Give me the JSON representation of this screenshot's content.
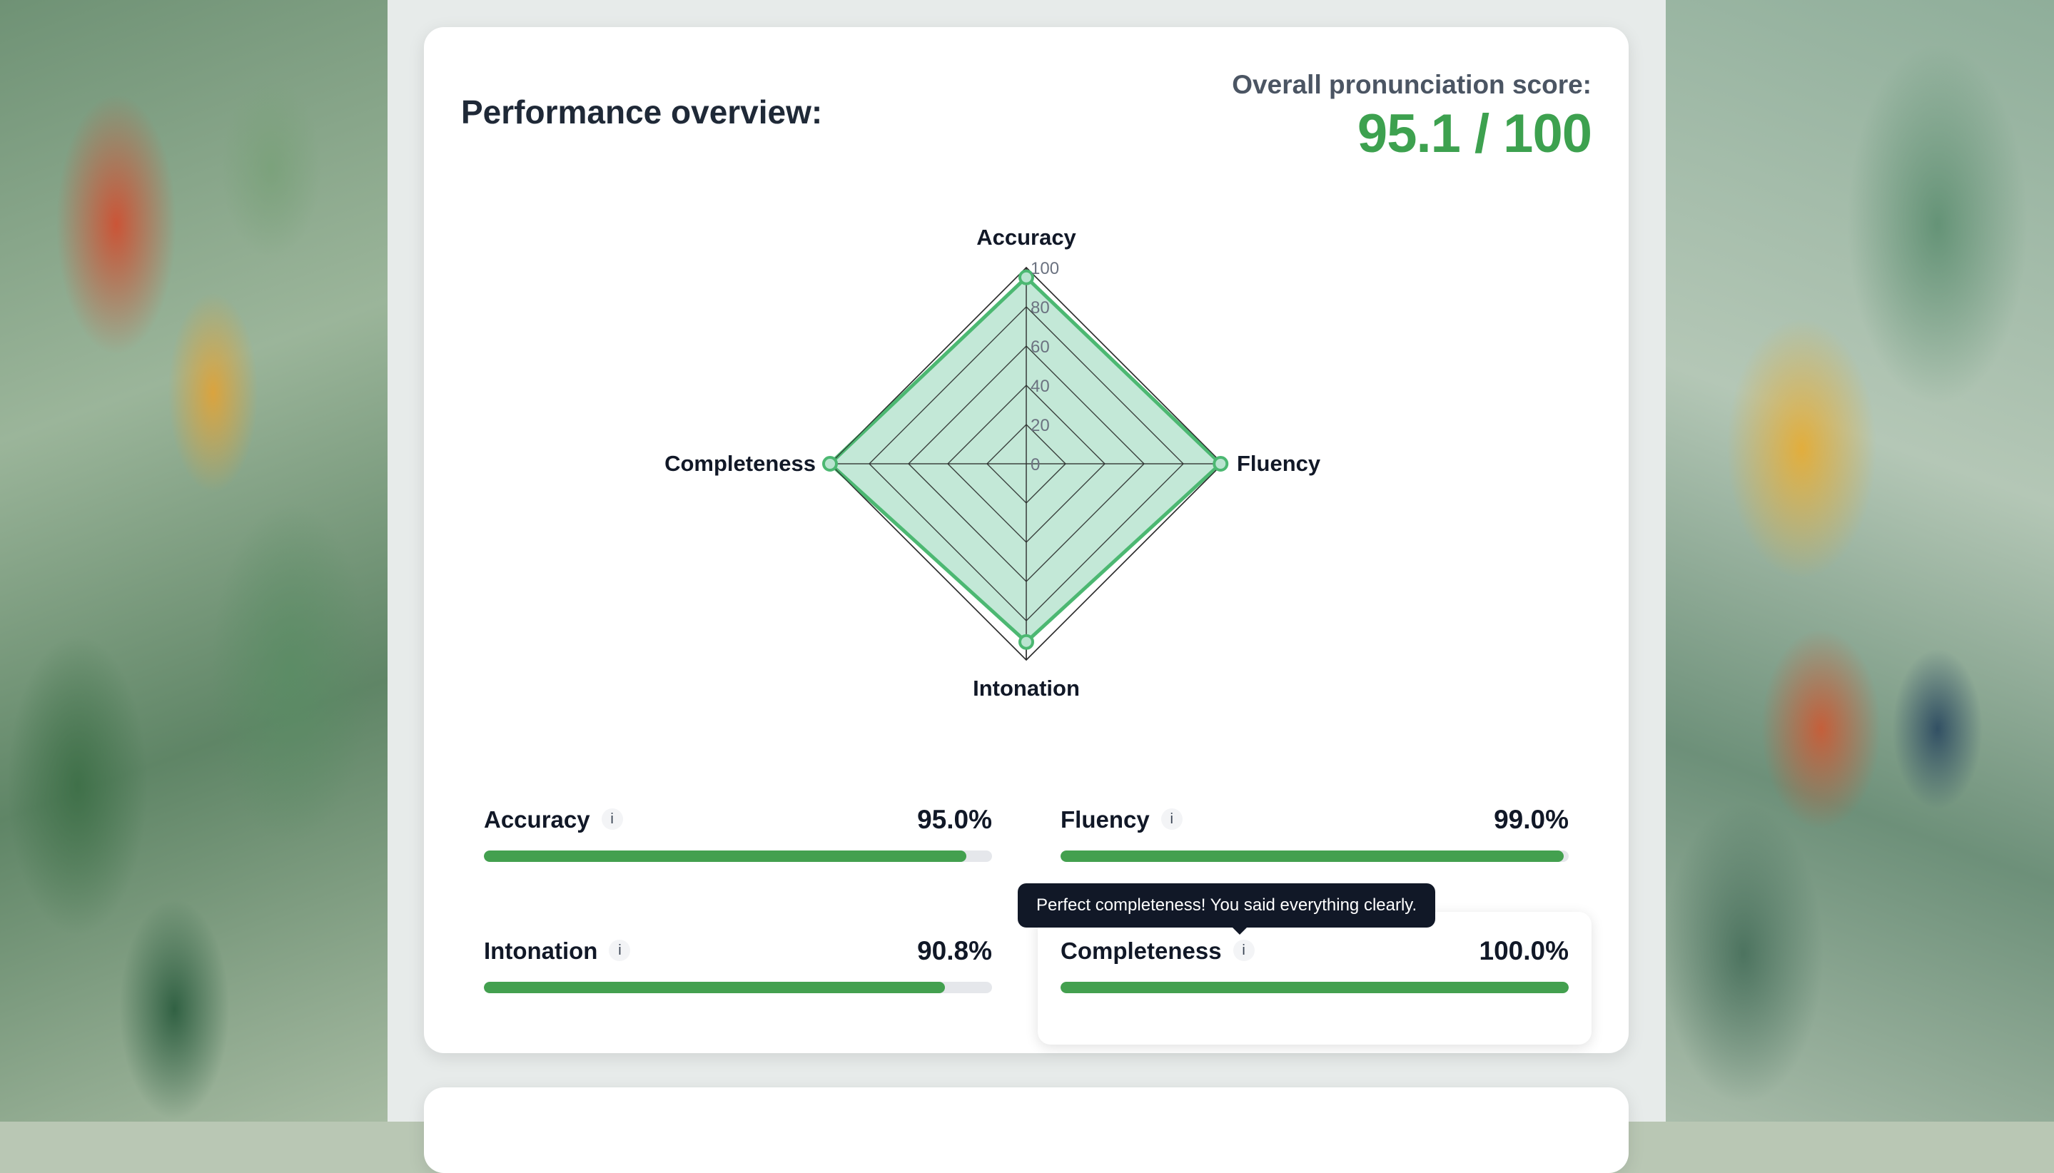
{
  "header": {
    "title": "Performance overview:",
    "overall_label": "Overall pronunciation score:",
    "overall_score": "95.1 / 100"
  },
  "chart_data": {
    "type": "radar",
    "axes": [
      "Accuracy",
      "Fluency",
      "Intonation",
      "Completeness"
    ],
    "values": [
      95.0,
      99.0,
      90.8,
      100.0
    ],
    "range": [
      0,
      100
    ],
    "ticks": [
      "0",
      "20",
      "40",
      "60",
      "80",
      "100"
    ],
    "fill_color": "#b9e4d0",
    "line_color": "#4cb872"
  },
  "metrics": [
    {
      "label": "Accuracy",
      "value": "95.0%",
      "fraction": 0.95
    },
    {
      "label": "Fluency",
      "value": "99.0%",
      "fraction": 0.99
    },
    {
      "label": "Intonation",
      "value": "90.8%",
      "fraction": 0.908
    },
    {
      "label": "Completeness",
      "value": "100.0%",
      "fraction": 1.0
    }
  ],
  "info_glyph": "i",
  "tooltip": "Perfect completeness! You said everything clearly.",
  "colors": {
    "accent": "#3da14f",
    "bar": "#43a04f",
    "track": "#e5e7eb",
    "tooltip_bg": "#111827"
  }
}
